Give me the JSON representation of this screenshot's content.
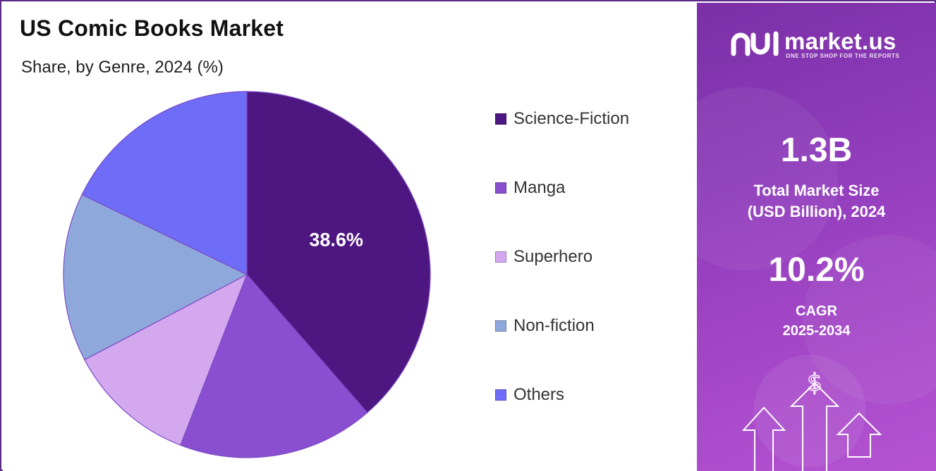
{
  "title": "US Comic Books Market",
  "subtitle": "Share, by Genre, 2024 (%)",
  "chart_data": {
    "type": "pie",
    "title": "US Comic Books Market",
    "subtitle": "Share, by Genre, 2024 (%)",
    "categories": [
      "Science-Fiction",
      "Manga",
      "Superhero",
      "Non-fiction",
      "Others"
    ],
    "values": [
      38.6,
      17.3,
      11.4,
      14.9,
      17.8
    ],
    "colors": [
      "#4e1680",
      "#8a4fd0",
      "#d4a8ef",
      "#8fa8dc",
      "#6f6cf7"
    ],
    "data_labels": [
      {
        "category": "Science-Fiction",
        "text": "38.6%"
      }
    ],
    "legend_position": "right"
  },
  "legend": [
    {
      "label": "Science-Fiction",
      "color": "#4e1680"
    },
    {
      "label": "Manga",
      "color": "#8a4fd0"
    },
    {
      "label": "Superhero",
      "color": "#d4a8ef"
    },
    {
      "label": "Non-fiction",
      "color": "#8fa8dc"
    },
    {
      "label": "Others",
      "color": "#6f6cf7"
    }
  ],
  "brand": {
    "name": "market.us",
    "tagline": "ONE STOP SHOP FOR THE REPORTS"
  },
  "stats": {
    "market_size": "1.3B",
    "market_size_label_line1": "Total Market Size",
    "market_size_label_line2": "(USD Billion), 2024",
    "cagr": "10.2%",
    "cagr_label_line1": "CAGR",
    "cagr_label_line2": "2025-2034"
  },
  "icons": [
    "market-us-logo-icon",
    "dollar-sign-icon",
    "up-arrow-icon"
  ],
  "colors": {
    "border": "#5b2a86",
    "panel_gradient_start": "#7b2fa6",
    "panel_gradient_end": "#b553d2"
  }
}
